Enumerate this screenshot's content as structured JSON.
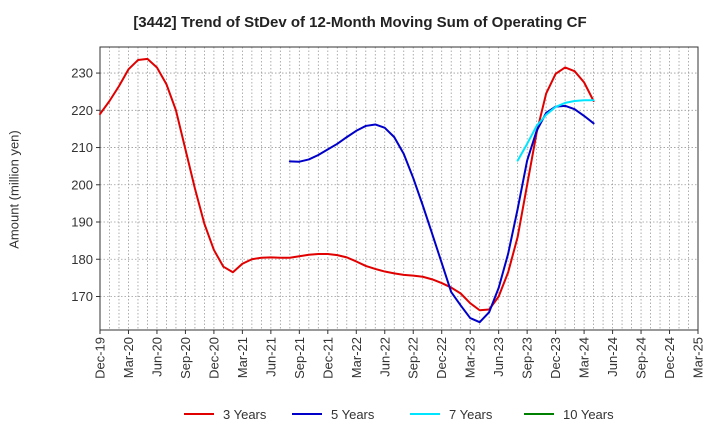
{
  "chart_data": {
    "type": "line",
    "title": "[3442]  Trend of StDev of 12-Month Moving Sum of Operating CF",
    "xlabel": "",
    "ylabel": "Amount (million yen)",
    "ylim": [
      161,
      237
    ],
    "yticks": [
      170,
      180,
      190,
      200,
      210,
      220,
      230
    ],
    "x_ticks": [
      "Dec-19",
      "Mar-20",
      "Jun-20",
      "Sep-20",
      "Dec-20",
      "Mar-21",
      "Jun-21",
      "Sep-21",
      "Dec-21",
      "Mar-22",
      "Jun-22",
      "Sep-22",
      "Dec-22",
      "Mar-23",
      "Jun-23",
      "Sep-23",
      "Dec-23",
      "Mar-24",
      "Jun-24",
      "Sep-24",
      "Dec-24",
      "Mar-25"
    ],
    "grid": true,
    "legend_position": "bottom",
    "series": [
      {
        "name": "3 Years",
        "color": "#e00000",
        "points": [
          [
            "Dec-19",
            219
          ],
          [
            "Jan-20",
            222.5
          ],
          [
            "Feb-20",
            226.5
          ],
          [
            "Mar-20",
            231
          ],
          [
            "Apr-20",
            233.5
          ],
          [
            "May-20",
            233.8
          ],
          [
            "Jun-20",
            231.5
          ],
          [
            "Jul-20",
            227
          ],
          [
            "Aug-20",
            220
          ],
          [
            "Sep-20",
            209.5
          ],
          [
            "Oct-20",
            199
          ],
          [
            "Nov-20",
            189.5
          ],
          [
            "Dec-20",
            182.5
          ],
          [
            "Jan-21",
            178
          ],
          [
            "Feb-21",
            176.5
          ],
          [
            "Mar-21",
            178.8
          ],
          [
            "Apr-21",
            180
          ],
          [
            "May-21",
            180.4
          ],
          [
            "Jun-21",
            180.5
          ],
          [
            "Jul-21",
            180.4
          ],
          [
            "Aug-21",
            180.4
          ],
          [
            "Sep-21",
            180.8
          ],
          [
            "Oct-21",
            181.2
          ],
          [
            "Nov-21",
            181.4
          ],
          [
            "Dec-21",
            181.4
          ],
          [
            "Jan-22",
            181.1
          ],
          [
            "Feb-22",
            180.5
          ],
          [
            "Mar-22",
            179.4
          ],
          [
            "Apr-22",
            178.2
          ],
          [
            "May-22",
            177.4
          ],
          [
            "Jun-22",
            176.7
          ],
          [
            "Jul-22",
            176.2
          ],
          [
            "Aug-22",
            175.8
          ],
          [
            "Sep-22",
            175.6
          ],
          [
            "Oct-22",
            175.3
          ],
          [
            "Nov-22",
            174.6
          ],
          [
            "Dec-22",
            173.6
          ],
          [
            "Jan-23",
            172.4
          ],
          [
            "Feb-23",
            170.8
          ],
          [
            "Mar-23",
            168.2
          ],
          [
            "Apr-23",
            166.3
          ],
          [
            "May-23",
            166.5
          ],
          [
            "Jun-23",
            170
          ],
          [
            "Jul-23",
            176.5
          ],
          [
            "Aug-23",
            186
          ],
          [
            "Sep-23",
            200
          ],
          [
            "Oct-23",
            214
          ],
          [
            "Nov-23",
            224.5
          ],
          [
            "Dec-23",
            229.8
          ],
          [
            "Jan-24",
            231.5
          ],
          [
            "Feb-24",
            230.5
          ],
          [
            "Mar-24",
            227.5
          ],
          [
            "Apr-24",
            222.5
          ]
        ]
      },
      {
        "name": "5 Years",
        "color": "#0000c8",
        "points": [
          [
            "Aug-21",
            206.3
          ],
          [
            "Sep-21",
            206.2
          ],
          [
            "Oct-21",
            206.8
          ],
          [
            "Nov-21",
            208
          ],
          [
            "Dec-21",
            209.5
          ],
          [
            "Jan-22",
            211
          ],
          [
            "Feb-22",
            212.8
          ],
          [
            "Mar-22",
            214.5
          ],
          [
            "Apr-22",
            215.8
          ],
          [
            "May-22",
            216.2
          ],
          [
            "Jun-22",
            215.3
          ],
          [
            "Jul-22",
            212.8
          ],
          [
            "Aug-22",
            208.3
          ],
          [
            "Sep-22",
            201.8
          ],
          [
            "Oct-22",
            194.5
          ],
          [
            "Nov-22",
            186.8
          ],
          [
            "Dec-22",
            179
          ],
          [
            "Jan-23",
            171.2
          ],
          [
            "Feb-23",
            167.6
          ],
          [
            "Mar-23",
            164.2
          ],
          [
            "Apr-23",
            163.1
          ],
          [
            "May-23",
            165.8
          ],
          [
            "Jun-23",
            172.3
          ],
          [
            "Jul-23",
            181.5
          ],
          [
            "Aug-23",
            193.5
          ],
          [
            "Sep-23",
            206.5
          ],
          [
            "Oct-23",
            214.5
          ],
          [
            "Nov-23",
            219.3
          ],
          [
            "Dec-23",
            221
          ],
          [
            "Jan-24",
            221.2
          ],
          [
            "Feb-24",
            220.3
          ],
          [
            "Mar-24",
            218.5
          ],
          [
            "Apr-24",
            216.5
          ]
        ]
      },
      {
        "name": "7 Years",
        "color": "#00e5ff",
        "points": [
          [
            "Aug-23",
            206.5
          ],
          [
            "Sep-23",
            211
          ],
          [
            "Oct-23",
            215.8
          ],
          [
            "Nov-23",
            218.8
          ],
          [
            "Dec-23",
            220.9
          ],
          [
            "Jan-24",
            222
          ],
          [
            "Feb-24",
            222.5
          ],
          [
            "Mar-24",
            222.7
          ],
          [
            "Apr-24",
            222.7
          ]
        ]
      },
      {
        "name": "10 Years",
        "color": "#008000",
        "points": []
      }
    ]
  }
}
